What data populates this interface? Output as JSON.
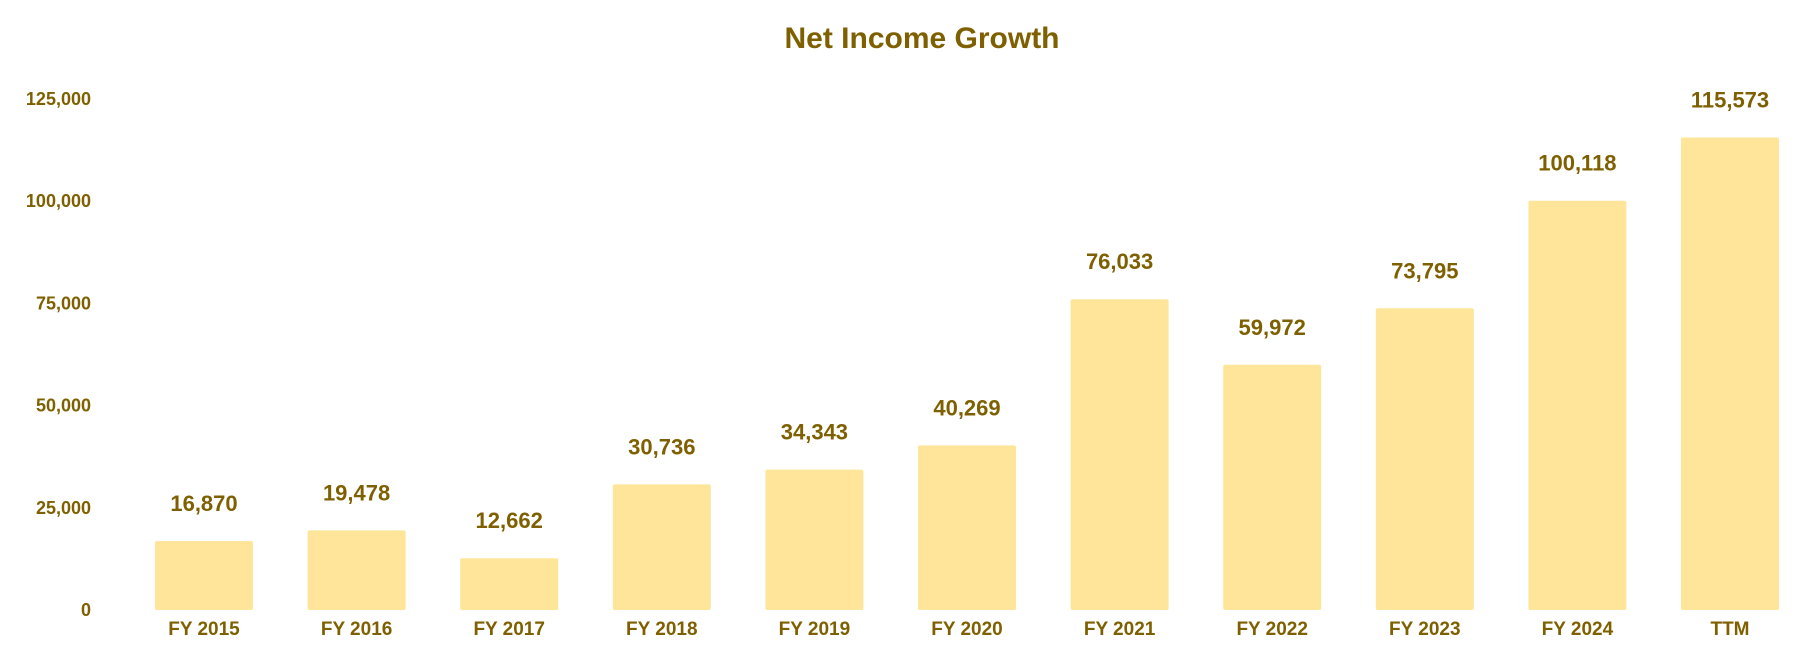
{
  "chart_data": {
    "type": "bar",
    "title": "Net Income Growth",
    "categories": [
      "FY 2015",
      "FY 2016",
      "FY 2017",
      "FY 2018",
      "FY 2019",
      "FY 2020",
      "FY 2021",
      "FY 2022",
      "FY 2023",
      "FY 2024",
      "TTM"
    ],
    "values": [
      16870,
      19478,
      12662,
      30736,
      34343,
      40269,
      76033,
      59972,
      73795,
      100118,
      115573
    ],
    "data_labels": [
      "16,870",
      "19,478",
      "12,662",
      "30,736",
      "34,343",
      "40,269",
      "76,033",
      "59,972",
      "73,795",
      "100,118",
      "115,573"
    ],
    "y_ticks": [
      0,
      25000,
      50000,
      75000,
      100000,
      125000
    ],
    "y_tick_labels": [
      "0",
      "25,000",
      "50,000",
      "75,000",
      "100,000",
      "125,000"
    ],
    "xlabel": "",
    "ylabel": "",
    "ylim": [
      0,
      125000
    ],
    "grid": false,
    "legend": "none",
    "colors": {
      "bar": "#FEE599",
      "text": "#7F6000",
      "background": "#FFFFFF"
    }
  }
}
